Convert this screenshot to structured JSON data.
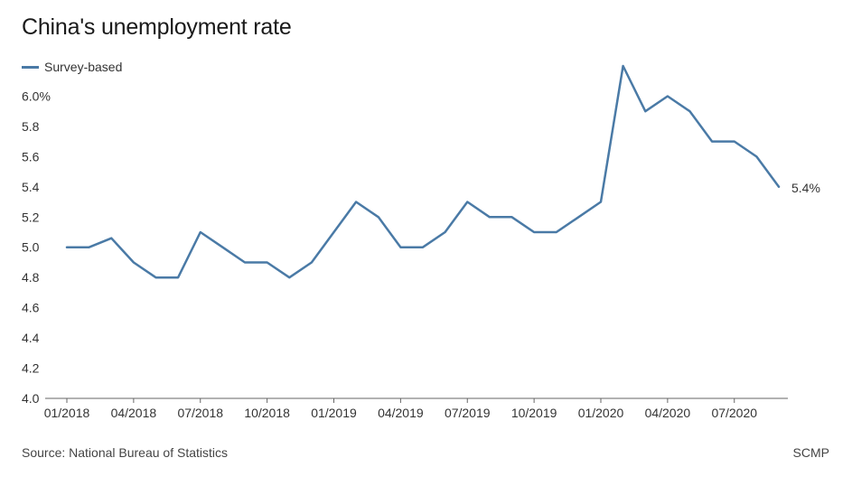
{
  "title": "China's unemployment rate",
  "source": "Source: National Bureau of Statistics",
  "credit": "SCMP",
  "colors": {
    "series": "#4a7aa6",
    "gridline": "#dddddd",
    "axis": "#666666",
    "text": "#333333"
  },
  "chart_data": {
    "type": "line",
    "title": "China's unemployment rate",
    "xlabel": "",
    "ylabel": "",
    "ylim": [
      4.0,
      6.2
    ],
    "grid": false,
    "legend_position": "top-left",
    "y_ticks": [
      4.0,
      4.2,
      4.4,
      4.6,
      4.8,
      5.0,
      5.2,
      5.4,
      5.6,
      5.8,
      6.0
    ],
    "y_tick_labels": [
      "4.0",
      "4.2",
      "4.4",
      "4.6",
      "4.8",
      "5.0",
      "5.2",
      "5.4",
      "5.6",
      "5.8",
      "6.0%"
    ],
    "x_tick_labels": [
      "01/2018",
      "04/2018",
      "07/2018",
      "10/2018",
      "01/2019",
      "04/2019",
      "07/2019",
      "10/2019",
      "01/2020",
      "04/2020",
      "07/2020"
    ],
    "x_tick_positions": [
      0,
      3,
      6,
      9,
      12,
      15,
      18,
      21,
      24,
      27,
      30
    ],
    "x": [
      "01/2018",
      "02/2018",
      "03/2018",
      "04/2018",
      "05/2018",
      "06/2018",
      "07/2018",
      "08/2018",
      "09/2018",
      "10/2018",
      "11/2018",
      "12/2018",
      "01/2019",
      "02/2019",
      "03/2019",
      "04/2019",
      "05/2019",
      "06/2019",
      "07/2019",
      "08/2019",
      "09/2019",
      "10/2019",
      "11/2019",
      "12/2019",
      "01/2020",
      "02/2020",
      "03/2020",
      "04/2020",
      "05/2020",
      "06/2020",
      "07/2020",
      "08/2020",
      "09/2020"
    ],
    "series": [
      {
        "name": "Survey-based",
        "values": [
          5.0,
          5.0,
          5.06,
          4.9,
          4.8,
          4.8,
          5.1,
          5.0,
          4.9,
          4.9,
          4.8,
          4.9,
          5.1,
          5.3,
          5.2,
          5.0,
          5.0,
          5.1,
          5.3,
          5.2,
          5.2,
          5.1,
          5.1,
          5.2,
          5.3,
          6.2,
          5.9,
          6.0,
          5.9,
          5.7,
          5.7,
          5.6,
          5.4
        ]
      }
    ],
    "end_label": "5.4%"
  }
}
